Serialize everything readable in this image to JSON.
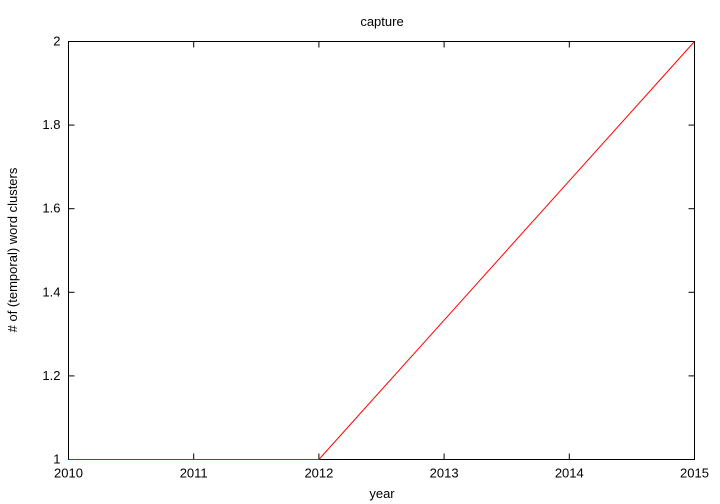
{
  "chart_data": {
    "type": "line",
    "title": "capture",
    "xlabel": "year",
    "ylabel": "# of (temporal) word clusters",
    "x": [
      2010,
      2011,
      2012,
      2013,
      2014,
      2015
    ],
    "series": [
      {
        "values": [
          1,
          1,
          1,
          1.3333,
          1.6667,
          2
        ],
        "color": "#ff0000"
      }
    ],
    "xlim": [
      2010,
      2015
    ],
    "ylim": [
      1,
      2
    ],
    "xticks": [
      "2010",
      "2011",
      "2012",
      "2013",
      "2014",
      "2015"
    ],
    "yticks": [
      "1",
      "1.2",
      "1.4",
      "1.6",
      "1.8",
      "2"
    ],
    "grid": false,
    "legend": "none"
  }
}
